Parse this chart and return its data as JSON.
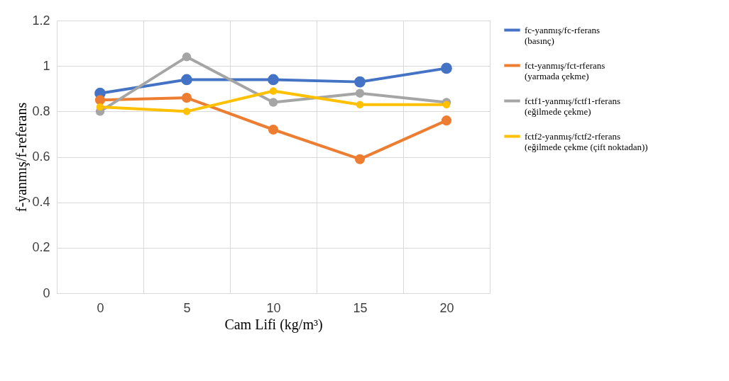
{
  "chart_data": {
    "type": "line",
    "xlabel": "Cam Lifi (kg/m³)",
    "ylabel": "f-yanmış/f-referans",
    "categories": [
      "0",
      "5",
      "10",
      "15",
      "20"
    ],
    "series": [
      {
        "name": "fc-yanmış/fc-rferans (basınç)",
        "color": "#4472c4",
        "values": [
          0.88,
          0.94,
          0.94,
          0.93,
          0.99
        ]
      },
      {
        "name": "fct-yanmış/fct-rferans (yarmada çekme)",
        "color": "#ed7d31",
        "values": [
          0.85,
          0.86,
          0.72,
          0.59,
          0.76
        ]
      },
      {
        "name": "fctf1-yanmış/fctf1-rferans (eğilmede çekme)",
        "color": "#a5a5a5",
        "values": [
          0.8,
          1.04,
          0.84,
          0.88,
          0.84
        ]
      },
      {
        "name": "fctf2-yanmış/fctf2-rferans (eğilmede çekme (çift noktadan))",
        "color": "#ffc000",
        "values": [
          0.82,
          0.8,
          0.89,
          0.83,
          0.83
        ]
      }
    ],
    "ylim": [
      0,
      1.2
    ],
    "yticks": [
      0,
      0.2,
      0.4,
      0.6,
      0.8,
      1,
      1.2
    ],
    "grid": true,
    "legend": "right",
    "marker": "circle",
    "line_style": "solid"
  }
}
